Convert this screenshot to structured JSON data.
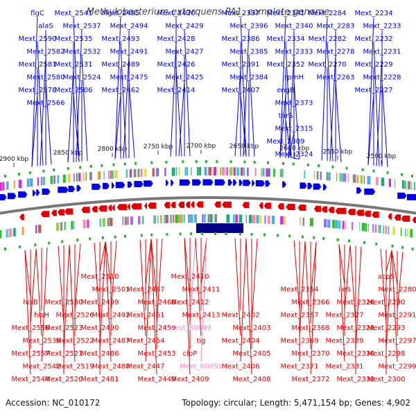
{
  "title": "Methylobacterium extorquens PA1, complete genome",
  "footer": {
    "accession": "Accession: NC_010172",
    "summary": "Topology: circular; Length: 5,471,154 bp; Genes: 4,902"
  },
  "colors": {
    "forward": "#0000dd",
    "reverse": "#dd0000",
    "rna": "#ee88cc",
    "backbone": "#777777"
  },
  "scale_ticks": [
    "2900 kbp",
    "2850 kbp",
    "2800 kbp",
    "2750 kbp",
    "2700 kbp",
    "2650 kbp",
    "2600 kbp",
    "2550 kbp",
    "2500 kbp"
  ],
  "top_labels": [
    "flgC",
    "alaS",
    "Mext_2590",
    "Mext_2582",
    "Mext_2581",
    "Mext_2580",
    "Mext_2578",
    "Mext_2566",
    "Mext_2541",
    "Mext_2537",
    "Mext_2535",
    "Mext_2532",
    "Mext_2531",
    "Mext_2524",
    "Mext_2506",
    "Mext_2495",
    "Mext_2494",
    "Mext_2493",
    "Mext_2491",
    "Mext_2489",
    "Mext_2475",
    "Mext_2462",
    "Mext_2430",
    "Mext_2429",
    "Mext_2428",
    "Mext_2427",
    "Mext_2426",
    "Mext_2425",
    "Mext_2414",
    "Mext_2397",
    "Mext_2396",
    "Mext_2386",
    "Mext_2385",
    "Mext_2391",
    "Mext_2384",
    "Mext_2407",
    "Mext_2341",
    "Mext_2340",
    "Mext_2334",
    "Mext_2333",
    "Mext_2352",
    "rpmH",
    "engB",
    "Mext_2373",
    "thrS",
    "Mext_2315",
    "Mext_2309",
    "Mext_2324",
    "Mext_2284",
    "Mext_2283",
    "Mext_2282",
    "Mext_2278",
    "Mext_2270",
    "Mext_2263",
    "Mext_2234",
    "Mext_2233",
    "Mext_2232",
    "Mext_2231",
    "Mext_2229",
    "Mext_2228",
    "Mext_2227"
  ],
  "bottom_labels": [
    "hisB",
    "hisH",
    "Mext_2556",
    "Mext_2538",
    "Mext_2557",
    "Mext_2542",
    "Mext_2544",
    "Mext_2530",
    "Mext_2526",
    "Mext_2523",
    "Mext_2522",
    "Mext_2521",
    "Mext_2519",
    "Mext_2520",
    "Mext_2510",
    "Mext_2501",
    "Mext_2499",
    "Mext_2492",
    "Mext_2490",
    "Mext_2487",
    "Mext_2486",
    "Mext_2480",
    "Mext_2481",
    "Mext_2467",
    "Mext_2466",
    "Mext_2461",
    "Mext_2459",
    "Mext_2454",
    "Mext_2453",
    "Mext_2447",
    "Mext_2449",
    "Mext_2410",
    "Mext_2411",
    "Mext_2412",
    "Mext_2413",
    "Mext_R0049",
    "tig",
    "clpP",
    "Mext_R0051",
    "Mext_2409",
    "Mext_2402",
    "Mext_2403",
    "Mext_2404",
    "Mext_2405",
    "Mext_2406",
    "Mext_2408",
    "Mext_2354",
    "Mext_2366",
    "Mext_2367",
    "Mext_2368",
    "Mext_2369",
    "Mext_2370",
    "Mext_2371",
    "Mext_2372",
    "ileS",
    "Mext_2326",
    "Mext_2327",
    "Mext_2328",
    "Mext_2329",
    "Mext_2330",
    "Mext_2331",
    "Mext_2332",
    "acpS",
    "Mext_2280",
    "Mext_2290",
    "Mext_2291",
    "Mext_2293",
    "Mext_2297",
    "Mext_2298",
    "Mext_2299",
    "Mext_2300"
  ]
}
